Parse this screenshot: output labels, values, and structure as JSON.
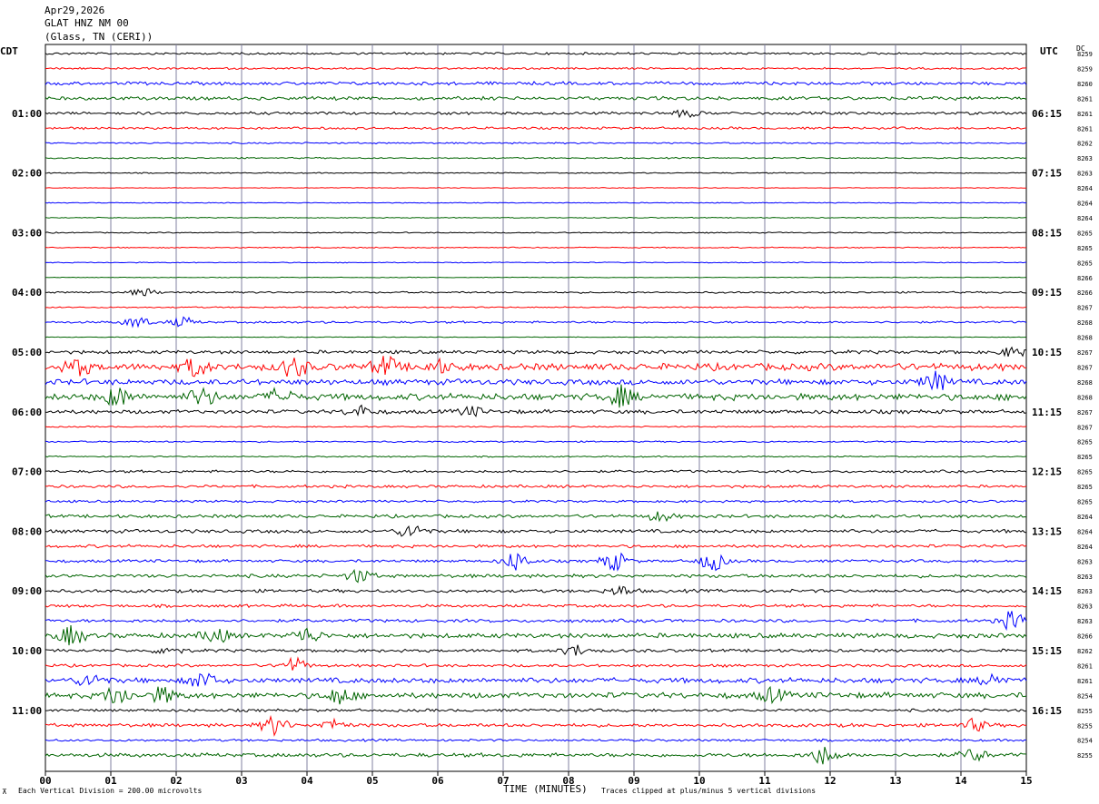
{
  "header": {
    "date": "Apr29,2026",
    "station": "GLAT HNZ NM 00",
    "location": "(Glass, TN (CERI))"
  },
  "left_label": "CDT",
  "right_label": "UTC",
  "dc_label": "DC",
  "footer": {
    "scale_note": "Each Vertical Division =  200.00 microvolts",
    "clip_note": "Traces clipped at plus/minus 5 vertical divisions",
    "corner_mark": "⊼"
  },
  "colors": {
    "trace": [
      "#000000",
      "#ff0000",
      "#0000ff",
      "#006400"
    ],
    "grid": "#8080a0"
  },
  "chart_data": {
    "type": "line",
    "title": "",
    "xlabel": "TIME (MINUTES)",
    "ylabel": "",
    "xlim": [
      0,
      15
    ],
    "x_ticks": [
      "00",
      "01",
      "02",
      "03",
      "04",
      "05",
      "06",
      "07",
      "08",
      "09",
      "10",
      "11",
      "12",
      "13",
      "14",
      "15"
    ],
    "rows": 48,
    "left_hour_labels": [
      "01:00",
      "02:00",
      "03:00",
      "04:00",
      "05:00",
      "06:00",
      "07:00",
      "08:00",
      "09:00",
      "10:00",
      "11:00"
    ],
    "right_hour_labels": [
      "06:15",
      "07:15",
      "08:15",
      "09:15",
      "10:15",
      "11:15",
      "12:15",
      "13:15",
      "14:15",
      "15:15",
      "16:15"
    ],
    "dc_offsets": [
      "8259",
      "8259",
      "8260",
      "8261",
      "8261",
      "8261",
      "8262",
      "8263",
      "8263",
      "8264",
      "8264",
      "8264",
      "8265",
      "8265",
      "8265",
      "8266",
      "8266",
      "8267",
      "8268",
      "8268",
      "8267",
      "8267",
      "8268",
      "8268",
      "8267",
      "8267",
      "8265",
      "8265",
      "8265",
      "8265",
      "8265",
      "8264",
      "8264",
      "8264",
      "8263",
      "8263",
      "8263",
      "8263",
      "8263",
      "8266",
      "8262",
      "8261",
      "8261",
      "8254",
      "8255",
      "8255",
      "8254",
      "8255"
    ],
    "row_activity": [
      1.0,
      0.9,
      1.5,
      1.6,
      1.3,
      1.1,
      0.7,
      0.6,
      0.5,
      0.3,
      0.4,
      0.4,
      0.5,
      0.5,
      0.4,
      0.3,
      0.8,
      0.6,
      1.0,
      0.3,
      1.6,
      3.2,
      2.6,
      3.0,
      1.8,
      0.6,
      0.7,
      0.6,
      1.2,
      1.3,
      1.1,
      1.5,
      1.6,
      1.4,
      1.3,
      1.6,
      1.5,
      1.4,
      1.5,
      2.2,
      1.4,
      1.3,
      2.4,
      2.6,
      1.3,
      1.6,
      1.1,
      1.8
    ],
    "bursts": [
      {
        "row": 4,
        "minute": 9.8,
        "amp": 4
      },
      {
        "row": 16,
        "minute": 1.5,
        "amp": 4
      },
      {
        "row": 18,
        "minute": 1.4,
        "amp": 6
      },
      {
        "row": 18,
        "minute": 2.1,
        "amp": 5
      },
      {
        "row": 20,
        "minute": 14.8,
        "amp": 5
      },
      {
        "row": 21,
        "minute": 0.5,
        "amp": 8
      },
      {
        "row": 21,
        "minute": 2.3,
        "amp": 9
      },
      {
        "row": 21,
        "minute": 3.8,
        "amp": 10
      },
      {
        "row": 21,
        "minute": 5.2,
        "amp": 10
      },
      {
        "row": 21,
        "minute": 6.0,
        "amp": 6
      },
      {
        "row": 22,
        "minute": 13.6,
        "amp": 10
      },
      {
        "row": 23,
        "minute": 1.1,
        "amp": 10
      },
      {
        "row": 23,
        "minute": 2.4,
        "amp": 9
      },
      {
        "row": 23,
        "minute": 3.6,
        "amp": 8
      },
      {
        "row": 23,
        "minute": 8.8,
        "amp": 10
      },
      {
        "row": 24,
        "minute": 4.8,
        "amp": 6
      },
      {
        "row": 24,
        "minute": 6.5,
        "amp": 5
      },
      {
        "row": 31,
        "minute": 9.4,
        "amp": 5
      },
      {
        "row": 32,
        "minute": 5.6,
        "amp": 8
      },
      {
        "row": 34,
        "minute": 7.2,
        "amp": 10
      },
      {
        "row": 34,
        "minute": 8.7,
        "amp": 10
      },
      {
        "row": 34,
        "minute": 10.2,
        "amp": 10
      },
      {
        "row": 35,
        "minute": 4.8,
        "amp": 7
      },
      {
        "row": 36,
        "minute": 8.8,
        "amp": 5
      },
      {
        "row": 38,
        "minute": 14.8,
        "amp": 10
      },
      {
        "row": 39,
        "minute": 0.4,
        "amp": 10
      },
      {
        "row": 39,
        "minute": 2.6,
        "amp": 8
      },
      {
        "row": 39,
        "minute": 4.0,
        "amp": 8
      },
      {
        "row": 40,
        "minute": 1.9,
        "amp": 5
      },
      {
        "row": 40,
        "minute": 8.1,
        "amp": 6
      },
      {
        "row": 41,
        "minute": 3.8,
        "amp": 8
      },
      {
        "row": 42,
        "minute": 2.4,
        "amp": 9
      },
      {
        "row": 42,
        "minute": 0.7,
        "amp": 7
      },
      {
        "row": 42,
        "minute": 14.5,
        "amp": 7
      },
      {
        "row": 43,
        "minute": 1.1,
        "amp": 10
      },
      {
        "row": 43,
        "minute": 1.8,
        "amp": 8
      },
      {
        "row": 43,
        "minute": 4.5,
        "amp": 9
      },
      {
        "row": 43,
        "minute": 11.1,
        "amp": 7
      },
      {
        "row": 45,
        "minute": 3.5,
        "amp": 10
      },
      {
        "row": 45,
        "minute": 4.4,
        "amp": 6
      },
      {
        "row": 45,
        "minute": 14.2,
        "amp": 6
      },
      {
        "row": 47,
        "minute": 11.9,
        "amp": 10
      },
      {
        "row": 47,
        "minute": 14.2,
        "amp": 7
      }
    ]
  }
}
